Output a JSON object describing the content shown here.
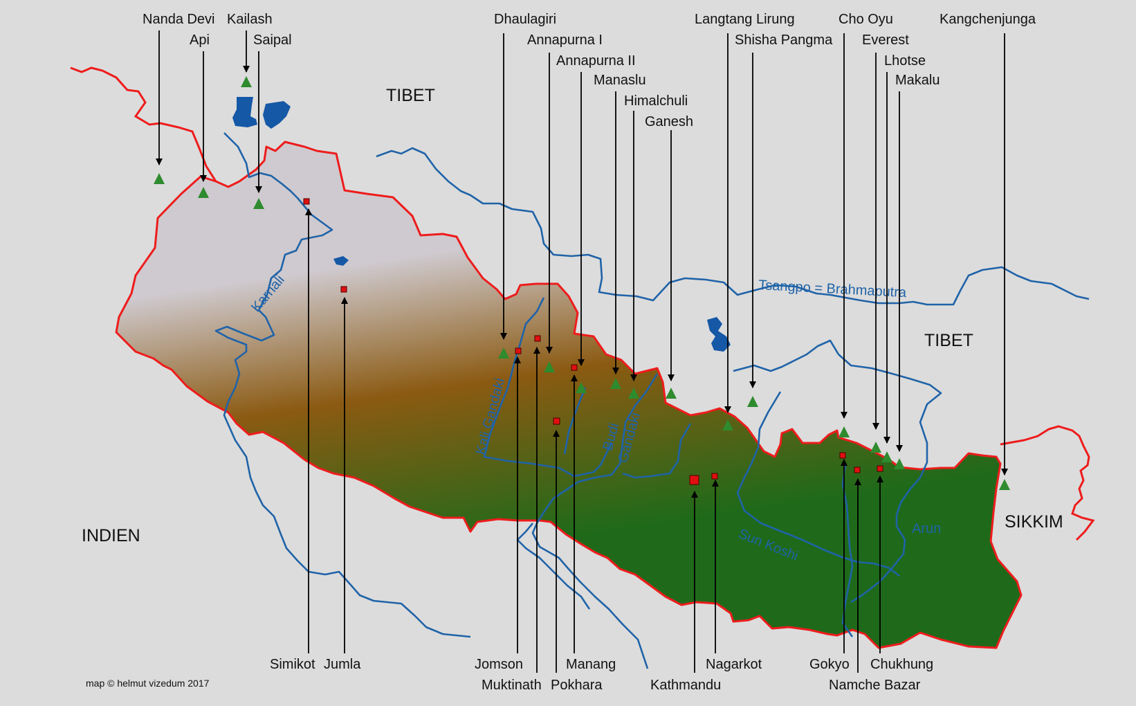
{
  "regions": {
    "tibet_west": "TIBET",
    "tibet_east": "TIBET",
    "india": "INDIEN",
    "sikkim": "SIKKIM"
  },
  "rivers": {
    "karnali": "Karnali",
    "kali_gandaki": "Kali Gandaki",
    "budi_gandaki_1": "Budi",
    "budi_gandaki_2": "Gandaki",
    "tsangpo": "Tsangpo = Brahmaputra",
    "sun_koshi": "Sun Koshi",
    "arun": "Arun"
  },
  "peaks": {
    "nanda_devi": "Nanda Devi",
    "api": "Api",
    "kailash": "Kailash",
    "saipal": "Saipal",
    "dhaulagiri": "Dhaulagiri",
    "annapurna_1": "Annapurna I",
    "annapurna_2": "Annapurna II",
    "manaslu": "Manaslu",
    "himalchuli": "Himalchuli",
    "ganesh": "Ganesh",
    "langtang_lirung": "Langtang Lirung",
    "shisha_pangma": "Shisha Pangma",
    "cho_oyu": "Cho Oyu",
    "everest": "Everest",
    "lhotse": "Lhotse",
    "makalu": "Makalu",
    "kangchenjunga": "Kangchenjunga"
  },
  "places": {
    "simikot": "Simikot",
    "jumla": "Jumla",
    "jomson": "Jomson",
    "muktinath": "Muktinath",
    "pokhara": "Pokhara",
    "manang": "Manang",
    "kathmandu": "Kathmandu",
    "nagarkot": "Nagarkot",
    "gokyo": "Gokyo",
    "namche_bazar": "Namche Bazar",
    "chukhung": "Chukhung"
  },
  "credit": "map © helmut vizedum 2017",
  "colors": {
    "background": "#dcdcdc",
    "border": "#ee1c1c",
    "river": "#1f63a8",
    "peak": "#2e8b2e",
    "town": "#e01010",
    "relief_high": "#cfcacf",
    "relief_mid": "#8b5a12",
    "relief_low": "#1f6a1a"
  },
  "icons": {
    "peak": "green-triangle-icon",
    "town": "red-square-icon",
    "pointer": "arrow-icon"
  }
}
